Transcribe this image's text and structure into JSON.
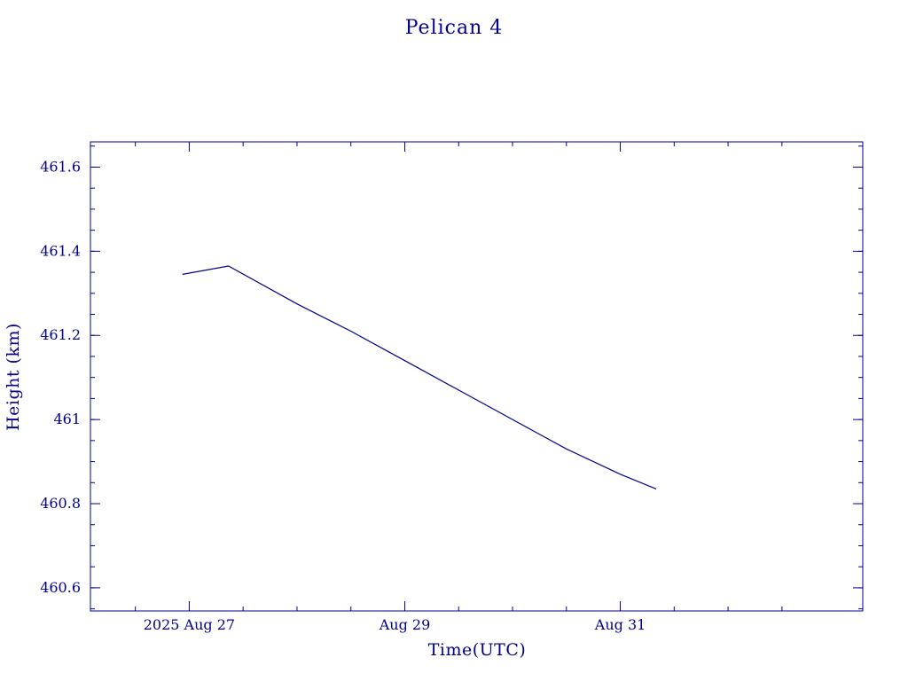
{
  "chart_data": {
    "type": "line",
    "title": "Pelican 4",
    "xlabel": "Time(UTC)",
    "ylabel": "Height (km)",
    "xlim": [
      "2025-08-26T02:00:00Z",
      "2025-09-02T06:00:00Z"
    ],
    "ylim": [
      460.545,
      461.66
    ],
    "x_ticks": [
      {
        "value": "2025-08-27T00:00:00Z",
        "label": "2025 Aug 27"
      },
      {
        "value": "2025-08-29T00:00:00Z",
        "label": "Aug 29"
      },
      {
        "value": "2025-08-31T00:00:00Z",
        "label": "Aug 31"
      }
    ],
    "x_minor_ticks": [
      "2025-08-26T12:00:00Z",
      "2025-08-27T12:00:00Z",
      "2025-08-28T00:00:00Z",
      "2025-08-28T12:00:00Z",
      "2025-08-29T12:00:00Z",
      "2025-08-30T00:00:00Z",
      "2025-08-30T12:00:00Z",
      "2025-08-31T12:00:00Z",
      "2025-09-01T00:00:00Z",
      "2025-09-01T12:00:00Z"
    ],
    "y_ticks": [
      {
        "value": 460.6,
        "label": "460.6"
      },
      {
        "value": 460.8,
        "label": "460.8"
      },
      {
        "value": 461.0,
        "label": "461"
      },
      {
        "value": 461.2,
        "label": "461.2"
      },
      {
        "value": 461.4,
        "label": "461.4"
      },
      {
        "value": 461.6,
        "label": "461.6"
      }
    ],
    "y_minor_step": 0.05,
    "grid": false,
    "series": [
      {
        "color": "#00008b",
        "x": [
          "2025-08-26T22:30:00Z",
          "2025-08-27T08:45:00Z",
          "2025-08-28T00:00:00Z",
          "2025-08-28T12:00:00Z",
          "2025-08-29T00:00:00Z",
          "2025-08-29T12:00:00Z",
          "2025-08-30T00:00:00Z",
          "2025-08-30T12:00:00Z",
          "2025-08-31T00:00:00Z",
          "2025-08-31T08:00:00Z"
        ],
        "y": [
          461.345,
          461.365,
          461.275,
          461.21,
          461.14,
          461.07,
          461.0,
          460.93,
          460.87,
          460.835
        ]
      }
    ]
  }
}
